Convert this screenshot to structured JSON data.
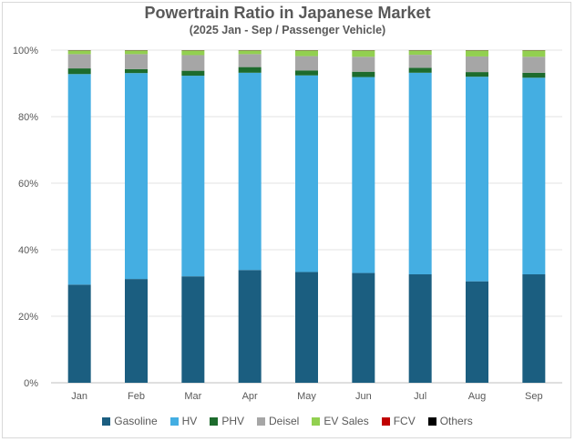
{
  "chart_data": {
    "type": "bar",
    "stacked": true,
    "title": "Powertrain Ratio in Japanese Market",
    "subtitle": "(2025 Jan - Sep / Passenger Vehicle)",
    "categories": [
      "Jan",
      "Feb",
      "Mar",
      "Apr",
      "May",
      "Jun",
      "Jul",
      "Aug",
      "Sep"
    ],
    "y_ticks": [
      "0%",
      "20%",
      "40%",
      "60%",
      "80%",
      "100%"
    ],
    "ylim": [
      0,
      100
    ],
    "grid": true,
    "legend_position": "bottom",
    "series": [
      {
        "name": "Gasoline",
        "color": "#1b5e80",
        "values": [
          29.5,
          31.2,
          32.0,
          33.9,
          33.3,
          33.0,
          32.6,
          30.5,
          32.6
        ]
      },
      {
        "name": "HV",
        "color": "#44aee2",
        "values": [
          63.3,
          61.9,
          60.3,
          59.3,
          59.1,
          58.9,
          60.6,
          61.5,
          59.1
        ]
      },
      {
        "name": "PHV",
        "color": "#1d6b2d",
        "values": [
          1.7,
          1.2,
          1.5,
          1.7,
          1.5,
          1.6,
          1.5,
          1.4,
          1.5
        ]
      },
      {
        "name": "Deisel",
        "color": "#a6a6a6",
        "values": [
          4.3,
          4.5,
          4.7,
          3.9,
          4.3,
          4.5,
          3.9,
          4.7,
          4.8
        ]
      },
      {
        "name": "EV Sales",
        "color": "#92d050",
        "values": [
          1.1,
          1.1,
          1.4,
          1.1,
          1.7,
          1.9,
          1.3,
          1.8,
          1.9
        ]
      },
      {
        "name": "FCV",
        "color": "#c00000",
        "values": [
          0.05,
          0.05,
          0.05,
          0.05,
          0.05,
          0.05,
          0.05,
          0.05,
          0.05
        ]
      },
      {
        "name": "Others",
        "color": "#000000",
        "values": [
          0.05,
          0.05,
          0.05,
          0.05,
          0.05,
          0.05,
          0.05,
          0.05,
          0.05
        ]
      }
    ]
  }
}
